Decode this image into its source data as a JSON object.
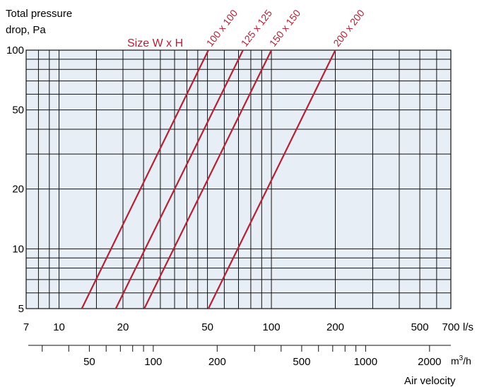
{
  "chart_data": {
    "type": "line",
    "title_lines": [
      "Total pressure",
      "drop, Pa"
    ],
    "legend_title": "Size W x H",
    "xlabel": "Air velocity",
    "x_scale": "log",
    "y_scale": "log",
    "xlim": [
      7,
      700
    ],
    "ylim": [
      5,
      100
    ],
    "x_unit": "l/s",
    "x_ticks": [
      7,
      10,
      20,
      50,
      100,
      200,
      500,
      700
    ],
    "x_tick_labels": [
      "7",
      "10",
      "20",
      "50",
      "100",
      "200",
      "500",
      "700"
    ],
    "y_ticks": [
      5,
      10,
      20,
      50,
      100
    ],
    "y_tick_labels": [
      "5",
      "10",
      "20",
      "50",
      "100"
    ],
    "secondary_x_unit_base": "m",
    "secondary_x_unit_sup": "3",
    "secondary_x_unit_tail": "/h",
    "secondary_x_ticks": [
      50,
      100,
      200,
      500,
      1000,
      2000
    ],
    "secondary_x_tick_labels": [
      "50",
      "100",
      "200",
      "500",
      "1000",
      "2000"
    ],
    "secondary_x_minor_ticks": [
      30,
      40,
      60,
      70,
      80,
      90,
      300,
      400,
      600,
      700,
      800,
      900
    ],
    "grid": true,
    "plot_background": "#e8eef5",
    "line_color": "#b22234",
    "series": [
      {
        "name": "100 x 100",
        "x": [
          12.8,
          50.5
        ],
        "y": [
          5,
          100
        ]
      },
      {
        "name": "125 x 125",
        "x": [
          18.5,
          73.5
        ],
        "y": [
          5,
          100
        ]
      },
      {
        "name": "150 x 150",
        "x": [
          25.2,
          100
        ],
        "y": [
          5,
          100
        ]
      },
      {
        "name": "200 x 200",
        "x": [
          50.5,
          200
        ],
        "y": [
          5,
          100
        ]
      }
    ]
  }
}
